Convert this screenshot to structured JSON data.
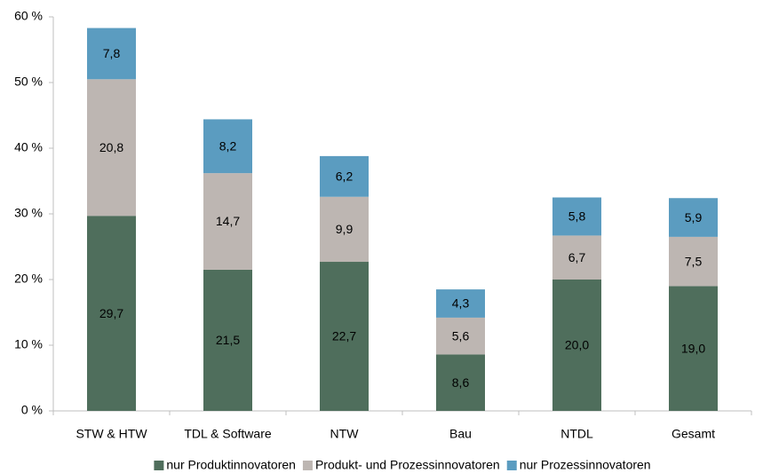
{
  "chart_data": {
    "type": "stacked_bar",
    "categories": [
      "STW & HTW",
      "TDL & Software",
      "NTW",
      "Bau",
      "NTDL",
      "Gesamt"
    ],
    "series": [
      {
        "name": "nur Produktinnovatoren",
        "color": "#4f6e5c",
        "values": [
          29.7,
          21.5,
          22.7,
          8.6,
          20.0,
          19.0
        ],
        "value_labels": [
          "29,7",
          "21,5",
          "22,7",
          "8,6",
          "20,0",
          "19,0"
        ]
      },
      {
        "name": "Produkt- und Prozessinnovatoren",
        "color": "#bdb6b2",
        "values": [
          20.8,
          14.7,
          9.9,
          5.6,
          6.7,
          7.5
        ],
        "value_labels": [
          "20,8",
          "14,7",
          "9,9",
          "5,6",
          "6,7",
          "7,5"
        ]
      },
      {
        "name": "nur Prozessinnovatoren",
        "color": "#5b9cc0",
        "values": [
          7.8,
          8.2,
          6.2,
          4.3,
          5.8,
          5.9
        ],
        "value_labels": [
          "7,8",
          "8,2",
          "6,2",
          "4,3",
          "5,8",
          "5,9"
        ]
      }
    ],
    "ylim": [
      0,
      60
    ],
    "yticks": [
      {
        "value": 0,
        "label": "0 %"
      },
      {
        "value": 10,
        "label": "10 %"
      },
      {
        "value": 20,
        "label": "20 %"
      },
      {
        "value": 30,
        "label": "30 %"
      },
      {
        "value": 40,
        "label": "40 %"
      },
      {
        "value": 50,
        "label": "50 %"
      },
      {
        "value": 60,
        "label": "60 %"
      }
    ],
    "legend": "bottom"
  }
}
